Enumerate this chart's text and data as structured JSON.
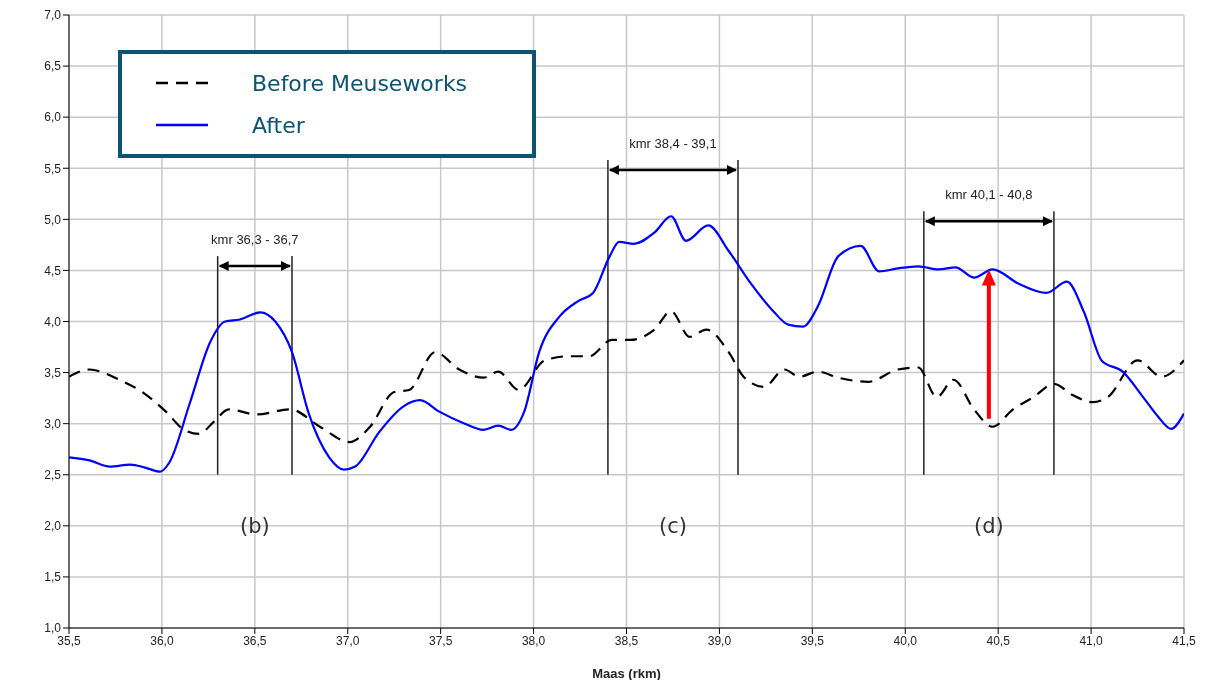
{
  "chart_data": {
    "type": "line",
    "xlabel": "Maas (rkm)",
    "xlim": [
      35.5,
      41.5
    ],
    "xticks": [
      {
        "value": 35.5,
        "label": "35,5"
      },
      {
        "value": 36,
        "label": "36,0"
      },
      {
        "value": 36.5,
        "label": "36,5"
      },
      {
        "value": 37,
        "label": "37,0"
      },
      {
        "value": 37.5,
        "label": "37,5"
      },
      {
        "value": 38,
        "label": "38,0"
      },
      {
        "value": 38.5,
        "label": "38,5"
      },
      {
        "value": 39,
        "label": "39,0"
      },
      {
        "value": 39.5,
        "label": "39,5"
      },
      {
        "value": 40,
        "label": "40,0"
      },
      {
        "value": 40.5,
        "label": "40,5"
      },
      {
        "value": 41,
        "label": "41,0"
      },
      {
        "value": 41.5,
        "label": "41,5"
      }
    ],
    "ylim": [
      1,
      7
    ],
    "yticks": [
      {
        "value": 1,
        "label": "1,0"
      },
      {
        "value": 1.5,
        "label": "1,5"
      },
      {
        "value": 2,
        "label": "2,0"
      },
      {
        "value": 2.5,
        "label": "2,5"
      },
      {
        "value": 3,
        "label": "3,0"
      },
      {
        "value": 3.5,
        "label": "3,5"
      },
      {
        "value": 4,
        "label": "4,0"
      },
      {
        "value": 4.5,
        "label": "4,5"
      },
      {
        "value": 5,
        "label": "5,0"
      },
      {
        "value": 5.5,
        "label": "5,5"
      },
      {
        "value": 6,
        "label": "6,0"
      },
      {
        "value": 6.5,
        "label": "6,5"
      },
      {
        "value": 7,
        "label": "7,0"
      }
    ],
    "grid": true,
    "legend": "top left",
    "marker": "none",
    "series": [
      {
        "name": "Before Meuseworks",
        "color": "#000000",
        "line_style": "dashed",
        "x": [
          35.5,
          35.61,
          35.77,
          35.91,
          36.02,
          36.12,
          36.2,
          36.28,
          36.36,
          36.51,
          36.69,
          36.85,
          37.01,
          37.12,
          37.25,
          37.33,
          37.47,
          37.6,
          37.73,
          37.81,
          37.92,
          38.06,
          38.19,
          38.3,
          38.42,
          38.52,
          38.65,
          38.74,
          38.84,
          38.93,
          39.05,
          39.13,
          39.24,
          39.35,
          39.43,
          39.53,
          39.64,
          39.8,
          39.96,
          40.07,
          40.17,
          40.26,
          40.37,
          40.47,
          40.58,
          40.69,
          40.8,
          40.9,
          41.01,
          41.09,
          41.25,
          41.38,
          41.5
        ],
        "values": [
          3.46,
          3.53,
          3.43,
          3.29,
          3.12,
          2.94,
          2.9,
          3.02,
          3.14,
          3.09,
          3.14,
          2.97,
          2.82,
          2.97,
          3.31,
          3.33,
          3.7,
          3.53,
          3.45,
          3.51,
          3.33,
          3.62,
          3.66,
          3.66,
          3.82,
          3.82,
          3.92,
          4.1,
          3.85,
          3.92,
          3.7,
          3.46,
          3.36,
          3.53,
          3.46,
          3.51,
          3.45,
          3.41,
          3.53,
          3.55,
          3.26,
          3.43,
          3.14,
          2.97,
          3.14,
          3.26,
          3.39,
          3.28,
          3.21,
          3.26,
          3.62,
          3.46,
          3.62
        ]
      },
      {
        "name": "After",
        "color": "#0000ff",
        "line_style": "solid",
        "x": [
          35.5,
          35.61,
          35.72,
          35.83,
          35.91,
          35.99,
          36.04,
          36.15,
          36.26,
          36.34,
          36.42,
          36.53,
          36.61,
          36.7,
          36.79,
          36.9,
          36.98,
          37.04,
          37.17,
          37.3,
          37.39,
          37.49,
          37.63,
          37.73,
          37.81,
          37.88,
          37.95,
          38.03,
          38.14,
          38.24,
          38.32,
          38.41,
          38.46,
          38.54,
          38.65,
          38.74,
          38.82,
          38.94,
          39.05,
          39.17,
          39.29,
          39.37,
          39.45,
          39.53,
          39.64,
          39.76,
          39.86,
          39.96,
          40.07,
          40.18,
          40.27,
          40.37,
          40.47,
          40.61,
          40.76,
          40.87,
          40.96,
          41.06,
          41.17,
          41.28,
          41.36,
          41.43,
          41.5
        ],
        "values": [
          2.67,
          2.64,
          2.58,
          2.6,
          2.57,
          2.53,
          2.62,
          3.2,
          3.8,
          4.0,
          4.02,
          4.09,
          4.0,
          3.7,
          3.1,
          2.67,
          2.55,
          2.58,
          2.92,
          3.17,
          3.23,
          3.12,
          3.0,
          2.94,
          2.98,
          2.94,
          3.12,
          3.7,
          4.05,
          4.2,
          4.28,
          4.64,
          4.78,
          4.76,
          4.87,
          5.03,
          4.79,
          4.94,
          4.69,
          4.37,
          4.1,
          3.97,
          3.95,
          4.15,
          4.64,
          4.74,
          4.49,
          4.52,
          4.54,
          4.51,
          4.53,
          4.43,
          4.51,
          4.37,
          4.28,
          4.39,
          4.1,
          3.61,
          3.51,
          3.26,
          3.07,
          2.95,
          3.1
        ]
      }
    ],
    "ref_lines": [
      {
        "axis": "x",
        "value": 36.3,
        "label": "kmr 36,3 - 36,7"
      },
      {
        "axis": "x",
        "value": 36.7
      },
      {
        "axis": "x",
        "value": 38.4,
        "label": "kmr 38,4 - 39,1"
      },
      {
        "axis": "x",
        "value": 39.1
      },
      {
        "axis": "x",
        "value": 40.1,
        "label": "kmr 40,1 - 40,8"
      },
      {
        "axis": "x",
        "value": 40.8
      }
    ],
    "annotations": [
      "(b)",
      "(c)",
      "(d)"
    ]
  }
}
